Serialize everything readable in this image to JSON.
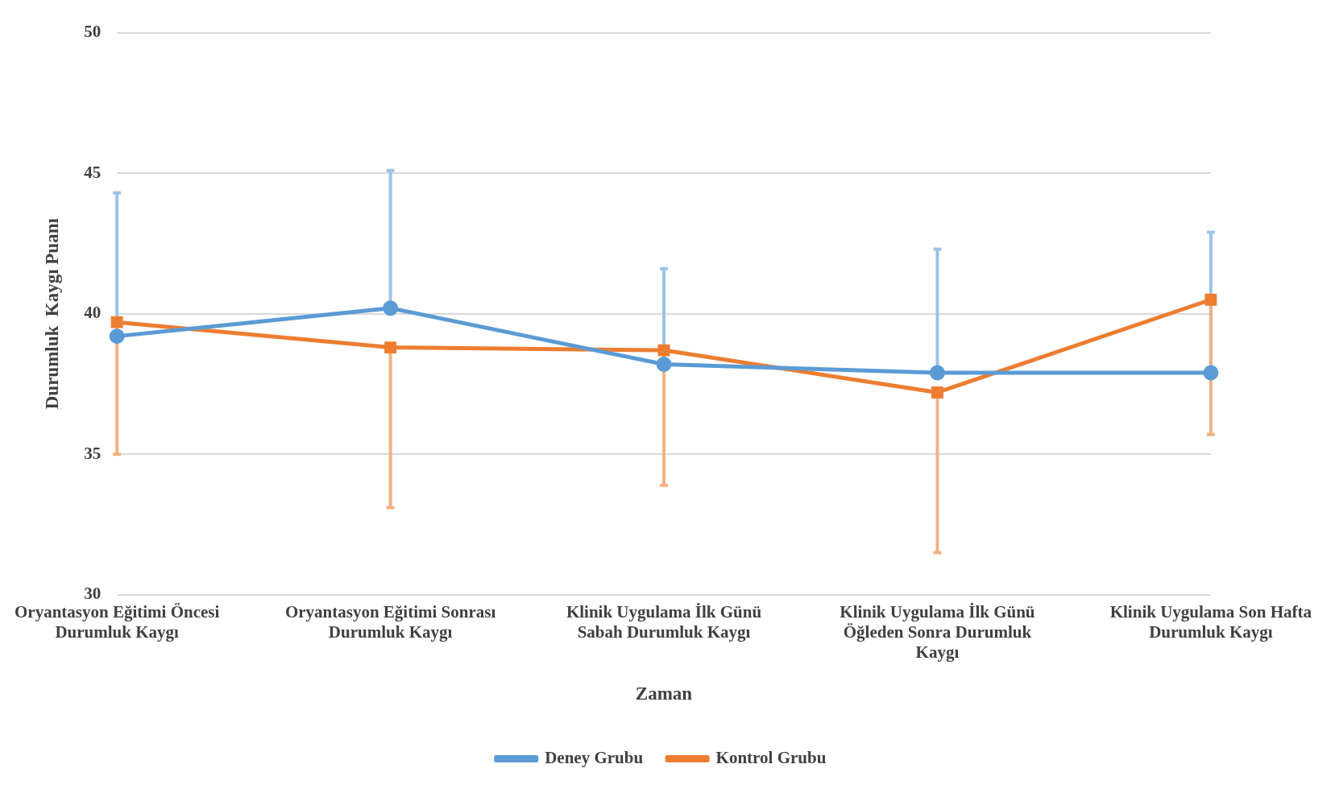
{
  "chart_data": {
    "type": "line",
    "xlabel": "Zaman",
    "ylabel": "Durumluk  Kaygı Puanı",
    "categories": [
      "Oryantasyon Eğitimi Öncesi Durumluk Kaygı",
      "Oryantasyon Eğitimi Sonrası Durumluk Kaygı",
      "Klinik Uygulama İlk Günü Sabah Durumluk Kaygı",
      "Klinik Uygulama İlk Günü Öğleden Sonra Durumluk Kaygı",
      "Klinik Uygulama Son Hafta Durumluk Kaygı"
    ],
    "series": [
      {
        "name": "Deney Grubu",
        "color": "#5b9bd5",
        "marker": "circle",
        "values": [
          39.2,
          40.2,
          38.2,
          37.9,
          37.9
        ],
        "errors": [
          [
            39.2,
            44.3
          ],
          [
            40.2,
            45.1
          ],
          [
            38.2,
            41.6
          ],
          [
            37.9,
            42.3
          ],
          [
            37.9,
            42.9
          ]
        ]
      },
      {
        "name": "Kontrol Grubu",
        "color": "#ed7d31",
        "marker": "square",
        "values": [
          39.7,
          38.8,
          38.7,
          37.2,
          40.5
        ],
        "errors": [
          [
            35.0,
            39.7
          ],
          [
            33.1,
            38.8
          ],
          [
            33.9,
            38.7
          ],
          [
            31.5,
            37.2
          ],
          [
            35.7,
            40.5
          ]
        ]
      }
    ],
    "ylim": [
      30,
      50
    ],
    "yticks": [
      30,
      35,
      40,
      45,
      50
    ],
    "grid": "y",
    "legend": "bottom",
    "line_style": "solid"
  }
}
